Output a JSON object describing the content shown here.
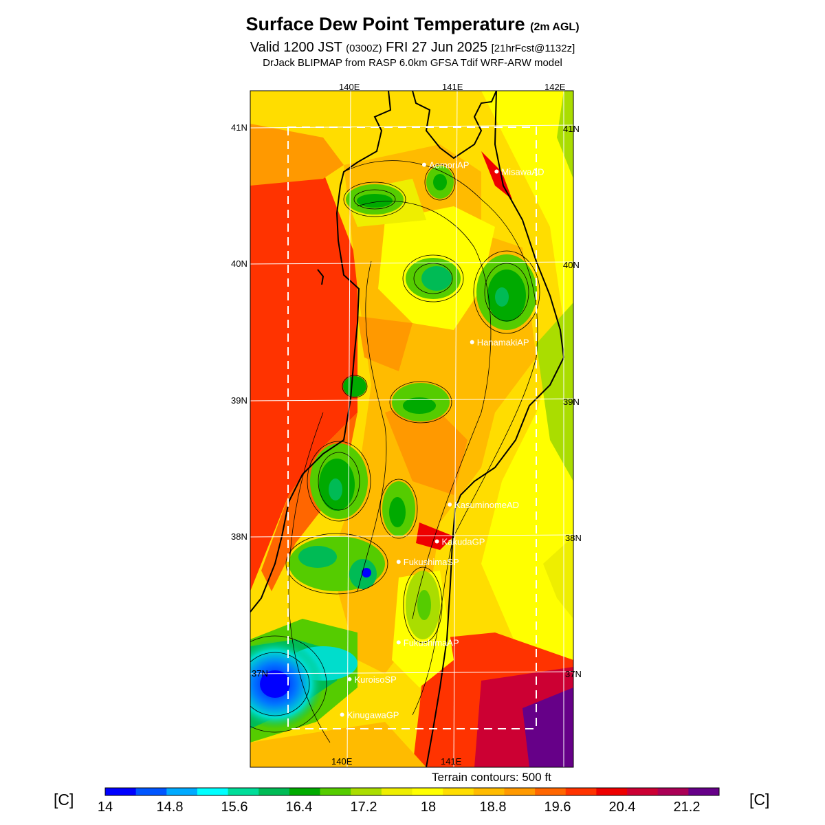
{
  "title": {
    "main": "Surface Dew Point Temperature",
    "main_suffix": "(2m AGL)",
    "valid_prefix": "Valid 1200 JST",
    "valid_utc": "(0300Z)",
    "valid_date": "FRI 27 Jun 2025",
    "forecast_info": "[21hrFcst@1132z]",
    "model": "DrJack BLIPMAP from RASP 6.0km GFSA Tdif WRF-ARW model"
  },
  "axes": {
    "lon_top": [
      "140E",
      "141E",
      "142E"
    ],
    "lon_bottom": [
      "140E",
      "141E"
    ],
    "lat_left": [
      "41N",
      "40N",
      "39N",
      "38N",
      "37N"
    ],
    "lat_right": [
      "41N",
      "40N",
      "39N",
      "38N",
      "37N"
    ]
  },
  "stations": [
    {
      "name": "AomoriAP",
      "lon": 140.69,
      "lat": 40.73
    },
    {
      "name": "MisawaAD",
      "lon": 141.37,
      "lat": 40.68
    },
    {
      "name": "HanamakiAP",
      "lon": 141.14,
      "lat": 39.43
    },
    {
      "name": "KasuminomeAD",
      "lon": 140.93,
      "lat": 38.24
    },
    {
      "name": "KakudaGP",
      "lon": 140.81,
      "lat": 37.97
    },
    {
      "name": "FukushimaSP",
      "lon": 140.45,
      "lat": 37.82
    },
    {
      "name": "FukushimaAP",
      "lon": 140.45,
      "lat": 37.23
    },
    {
      "name": "KuroisoSP",
      "lon": 139.99,
      "lat": 36.96
    },
    {
      "name": "KinugawaGP",
      "lon": 139.92,
      "lat": 36.7
    }
  ],
  "terrain_note": "Terrain contours: 500 ft",
  "colorbar": {
    "unit": "[C]",
    "tick_labels": [
      "14",
      "14.8",
      "15.6",
      "16.4",
      "17.2",
      "18",
      "18.8",
      "19.6",
      "20.4",
      "21.2"
    ],
    "min": 14,
    "max": 21.6,
    "colors": [
      "#0000ff",
      "#0055ff",
      "#00aaff",
      "#00ffff",
      "#00dd99",
      "#00bb55",
      "#00aa00",
      "#55cc00",
      "#aadd00",
      "#eeee00",
      "#ffff00",
      "#ffdd00",
      "#ffbb00",
      "#ff9900",
      "#ff6600",
      "#ff3300",
      "#ee0000",
      "#cc0033",
      "#aa0055",
      "#660088"
    ]
  }
}
